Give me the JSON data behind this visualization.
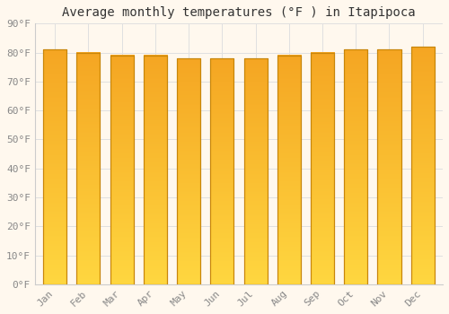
{
  "title": "Average monthly temperatures (°F ) in Itapipoca",
  "months": [
    "Jan",
    "Feb",
    "Mar",
    "Apr",
    "May",
    "Jun",
    "Jul",
    "Aug",
    "Sep",
    "Oct",
    "Nov",
    "Dec"
  ],
  "values": [
    81,
    80,
    79,
    79,
    78,
    78,
    78,
    79,
    80,
    81,
    81,
    82
  ],
  "bar_color_top": "#F5A623",
  "bar_color_bottom": "#FFD740",
  "bar_edge_color": "#C8860A",
  "background_color": "#FFF8EE",
  "grid_color": "#E0E0E0",
  "ylim": [
    0,
    90
  ],
  "yticks": [
    0,
    10,
    20,
    30,
    40,
    50,
    60,
    70,
    80,
    90
  ],
  "ytick_labels": [
    "0°F",
    "10°F",
    "20°F",
    "30°F",
    "40°F",
    "50°F",
    "60°F",
    "70°F",
    "80°F",
    "90°F"
  ],
  "title_fontsize": 10,
  "tick_fontsize": 8,
  "font_family": "monospace"
}
